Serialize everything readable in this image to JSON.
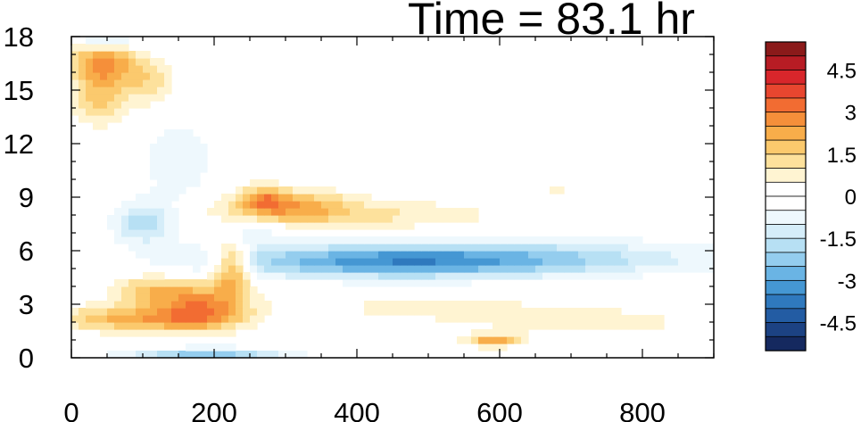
{
  "chart_data": {
    "type": "heatmap",
    "title": "Time = 83.1 hr",
    "xlim": [
      0,
      900
    ],
    "ylim": [
      0,
      18
    ],
    "x_ticks": [
      0,
      200,
      400,
      600,
      800
    ],
    "x_tick_labels": [
      "0",
      "200",
      "400",
      "600",
      "800"
    ],
    "y_ticks": [
      0,
      3,
      6,
      9,
      12,
      15,
      18
    ],
    "y_tick_labels": [
      "0",
      "3",
      "6",
      "9",
      "12",
      "15",
      "18"
    ],
    "colorbar": {
      "levels": [
        -5.5,
        -5,
        -4.5,
        -4,
        -3.5,
        -3,
        -2.5,
        -2,
        -1.5,
        -1,
        -0.5,
        0,
        0.5,
        1,
        1.5,
        2,
        2.5,
        3,
        3.5,
        4,
        4.5,
        5,
        5.5
      ],
      "tick_values": [
        4.5,
        3,
        1.5,
        0,
        -1.5,
        -3,
        -4.5
      ],
      "tick_labels": [
        "4.5",
        "3",
        "1.5",
        "0",
        "-1.5",
        "-3",
        "-4.5"
      ],
      "colors": [
        "#8b1a1a",
        "#b71c24",
        "#d8262b",
        "#e8462f",
        "#f26c32",
        "#f58f3a",
        "#f8ad4a",
        "#fbc96d",
        "#fde19c",
        "#fff4d2",
        "#ffffff",
        "#ffffff",
        "#eef8fd",
        "#d5edf9",
        "#b7e0f4",
        "#94cdee",
        "#6ab4e4",
        "#4597d3",
        "#2f79be",
        "#235ca3",
        "#1c4283",
        "#15295f"
      ]
    },
    "features": [
      {
        "x": 560,
        "y": 5.6,
        "sx": 220,
        "sy": 0.7,
        "value": -2.3
      },
      {
        "x": 420,
        "y": 5.3,
        "sx": 160,
        "sy": 0.6,
        "value": -1.6
      },
      {
        "x": 300,
        "y": 8.6,
        "sx": 60,
        "sy": 0.6,
        "value": 2.0
      },
      {
        "x": 400,
        "y": 8.0,
        "sx": 140,
        "sy": 0.6,
        "value": 1.1
      },
      {
        "x": 225,
        "y": 5.2,
        "sx": 18,
        "sy": 1.0,
        "value": 2.8
      },
      {
        "x": 185,
        "y": 2.9,
        "sx": 45,
        "sy": 0.9,
        "value": 2.6
      },
      {
        "x": 90,
        "y": 2.2,
        "sx": 80,
        "sy": 0.5,
        "value": 2.2
      },
      {
        "x": 110,
        "y": 3.8,
        "sx": 40,
        "sy": 0.6,
        "value": 1.6
      },
      {
        "x": 45,
        "y": 16.5,
        "sx": 35,
        "sy": 0.8,
        "value": 2.6
      },
      {
        "x": 40,
        "y": 14.5,
        "sx": 25,
        "sy": 1.0,
        "value": 1.7
      },
      {
        "x": 110,
        "y": 15.3,
        "sx": 25,
        "sy": 0.9,
        "value": 1.3
      },
      {
        "x": 100,
        "y": 7.6,
        "sx": 30,
        "sy": 0.8,
        "value": -1.9
      },
      {
        "x": 190,
        "y": 0.2,
        "sx": 80,
        "sy": 0.25,
        "value": -2.3
      },
      {
        "x": 50,
        "y": 17.8,
        "sx": 30,
        "sy": 0.3,
        "value": -1.6
      },
      {
        "x": 590,
        "y": 1.0,
        "sx": 25,
        "sy": 0.25,
        "value": 2.3
      },
      {
        "x": 720,
        "y": 2.0,
        "sx": 120,
        "sy": 0.6,
        "value": 0.8
      },
      {
        "x": 500,
        "y": 2.8,
        "sx": 120,
        "sy": 0.5,
        "value": 0.7
      },
      {
        "x": 150,
        "y": 11.0,
        "sx": 40,
        "sy": 2.0,
        "value": -0.8
      },
      {
        "x": 680,
        "y": 9.5,
        "sx": 20,
        "sy": 0.5,
        "value": 0.6
      },
      {
        "x": 800,
        "y": 8.0,
        "sx": 40,
        "sy": 0.6,
        "value": -0.5
      },
      {
        "x": 270,
        "y": 9.0,
        "sx": 20,
        "sy": 0.5,
        "value": 1.5
      },
      {
        "x": 250,
        "y": 7.0,
        "sx": 30,
        "sy": 0.6,
        "value": -1.0
      }
    ]
  }
}
